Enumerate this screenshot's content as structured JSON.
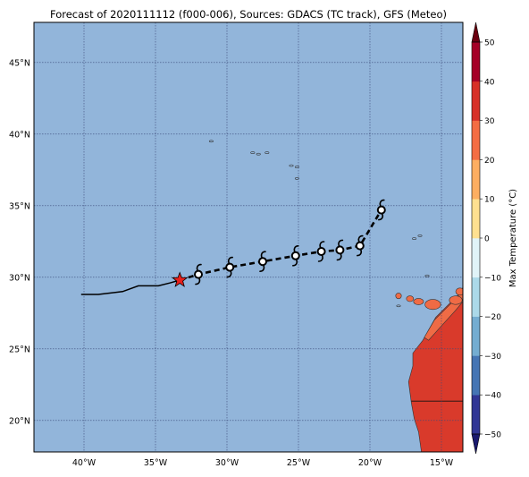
{
  "title": "Forecast of 2020111112 (f000-006), Sources: GDACS (TC track), GFS (Meteo)",
  "colors": {
    "ocean": "#92b5da",
    "land": "#d93a2b",
    "land_coast": "#ef6b45",
    "grid": "#3b4a7a",
    "track": "#000000",
    "start_marker": "#e8201c"
  },
  "map": {
    "lon_range": [
      -43.5,
      -13.5
    ],
    "lat_range": [
      17.8,
      47.8
    ],
    "lon_ticks": [
      {
        "value": -40,
        "label": "40°W"
      },
      {
        "value": -35,
        "label": "35°W"
      },
      {
        "value": -30,
        "label": "30°W"
      },
      {
        "value": -25,
        "label": "25°W"
      },
      {
        "value": -20,
        "label": "20°W"
      },
      {
        "value": -15,
        "label": "15°W"
      }
    ],
    "lat_ticks": [
      {
        "value": 20,
        "label": "20°N"
      },
      {
        "value": 25,
        "label": "25°N"
      },
      {
        "value": 30,
        "label": "30°N"
      },
      {
        "value": 35,
        "label": "35°N"
      },
      {
        "value": 40,
        "label": "40°N"
      },
      {
        "value": 45,
        "label": "45°N"
      }
    ],
    "past_track": [
      [
        -40.2,
        28.8
      ],
      [
        -39.0,
        28.8
      ],
      [
        -37.3,
        29.0
      ],
      [
        -36.2,
        29.4
      ],
      [
        -34.8,
        29.4
      ],
      [
        -34.0,
        29.6
      ],
      [
        -33.3,
        29.8
      ]
    ],
    "current_position": [
      -33.3,
      29.8
    ],
    "forecast_track": [
      [
        -33.3,
        29.8
      ],
      [
        -32.0,
        30.2
      ],
      [
        -29.8,
        30.7
      ],
      [
        -27.5,
        31.1
      ],
      [
        -25.2,
        31.5
      ],
      [
        -23.4,
        31.8
      ],
      [
        -22.1,
        31.9
      ],
      [
        -20.7,
        32.2
      ],
      [
        -19.2,
        34.7
      ]
    ],
    "forecast_symbols": [
      [
        -32.0,
        30.2
      ],
      [
        -29.8,
        30.7
      ],
      [
        -27.5,
        31.1
      ],
      [
        -25.2,
        31.5
      ],
      [
        -23.4,
        31.8
      ],
      [
        -22.1,
        31.9
      ],
      [
        -20.7,
        32.2
      ],
      [
        -19.2,
        34.7
      ]
    ]
  },
  "colorbar": {
    "label": "Max Temperature (°C)",
    "levels": [
      -50,
      -40,
      -30,
      -20,
      -10,
      0,
      10,
      20,
      30,
      40,
      50
    ],
    "tick_labels": [
      "−50",
      "−40",
      "−30",
      "−20",
      "−10",
      "0",
      "10",
      "20",
      "30",
      "40",
      "50"
    ],
    "colors": [
      "#313695",
      "#4575b4",
      "#74add1",
      "#abd9e9",
      "#e0f3f8",
      "#fee090",
      "#fdae61",
      "#f46d43",
      "#d73027",
      "#a50026"
    ],
    "under_color": "#1a1a6e",
    "over_color": "#6b0010"
  }
}
